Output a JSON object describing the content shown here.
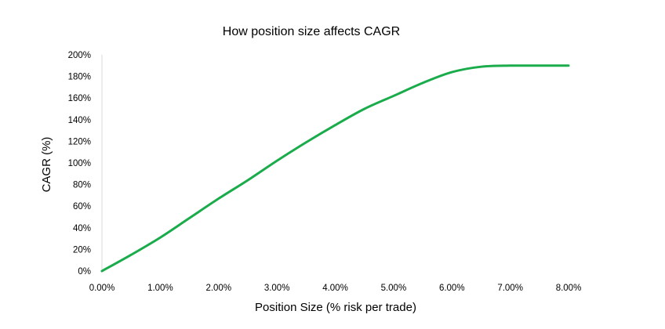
{
  "chart_data": {
    "type": "line",
    "title": "How position size affects CAGR",
    "xlabel": "Position Size (% risk per trade)",
    "ylabel": "CAGR (%)",
    "x_tick_labels": [
      "0.00%",
      "1.00%",
      "2.00%",
      "3.00%",
      "4.00%",
      "5.00%",
      "6.00%",
      "7.00%",
      "8.00%"
    ],
    "y_tick_labels": [
      "0%",
      "20%",
      "40%",
      "60%",
      "80%",
      "100%",
      "120%",
      "140%",
      "160%",
      "180%",
      "200%"
    ],
    "xlim": [
      0,
      8
    ],
    "ylim": [
      0,
      200
    ],
    "grid": false,
    "legend": "none",
    "series": [
      {
        "color": "#1aab4b",
        "x": [
          0,
          0.5,
          1,
          1.5,
          2,
          2.5,
          3,
          3.5,
          4,
          4.5,
          5,
          5.5,
          6,
          6.5,
          7,
          7.5,
          8
        ],
        "y": [
          0,
          15,
          31,
          49,
          67,
          84,
          102,
          119,
          135,
          150,
          162,
          174,
          184,
          189,
          190,
          190,
          190
        ]
      }
    ]
  }
}
